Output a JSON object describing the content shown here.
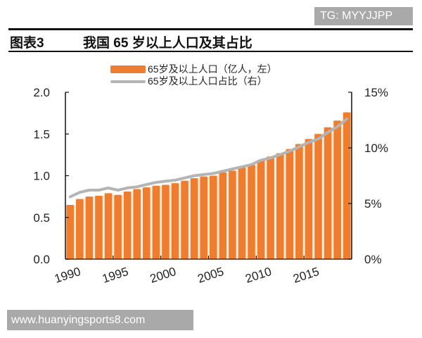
{
  "watermark_top": "TG: MYYJJPP",
  "watermark_bottom": "www.huanyingsports8.com",
  "figure": {
    "label": "图表3",
    "title": "我国 65 岁以上人口及其占比"
  },
  "colors": {
    "bar": "#ed7d31",
    "line": "#b4b4b4",
    "bar_gap": "#fde9d0"
  },
  "chart_data": {
    "type": "bar+line",
    "title": "我国 65 岁以上人口及其占比",
    "legend_position": "top",
    "x": [
      1990,
      1991,
      1992,
      1993,
      1994,
      1995,
      1996,
      1997,
      1998,
      1999,
      2000,
      2001,
      2002,
      2003,
      2004,
      2005,
      2006,
      2007,
      2008,
      2009,
      2010,
      2011,
      2012,
      2013,
      2014,
      2015,
      2016,
      2017,
      2018,
      2019
    ],
    "xticks": [
      "1990",
      "1995",
      "2000",
      "2005",
      "2010",
      "2015"
    ],
    "series": [
      {
        "name": "65岁及以上人口（亿人，左）",
        "type": "bar",
        "axis": "left",
        "values": [
          0.65,
          0.72,
          0.75,
          0.76,
          0.79,
          0.77,
          0.81,
          0.84,
          0.86,
          0.88,
          0.89,
          0.91,
          0.94,
          0.97,
          0.99,
          1.0,
          1.04,
          1.06,
          1.1,
          1.13,
          1.19,
          1.23,
          1.27,
          1.32,
          1.38,
          1.44,
          1.5,
          1.58,
          1.66,
          1.76
        ]
      },
      {
        "name": "65岁及以上人口占比（右）",
        "type": "line",
        "axis": "right",
        "values": [
          5.6,
          6.0,
          6.2,
          6.2,
          6.4,
          6.2,
          6.4,
          6.5,
          6.7,
          6.9,
          7.0,
          7.1,
          7.3,
          7.5,
          7.6,
          7.7,
          7.9,
          8.1,
          8.3,
          8.5,
          8.9,
          9.1,
          9.4,
          9.7,
          10.1,
          10.5,
          10.8,
          11.4,
          11.9,
          12.6
        ]
      }
    ],
    "ylim_left": [
      0,
      2.0
    ],
    "yticks_left": [
      "0.0",
      "0.5",
      "1.0",
      "1.5",
      "2.0"
    ],
    "ylim_right": [
      0,
      15
    ],
    "yticks_right": [
      "0%",
      "5%",
      "10%",
      "15%"
    ],
    "grid": false
  }
}
